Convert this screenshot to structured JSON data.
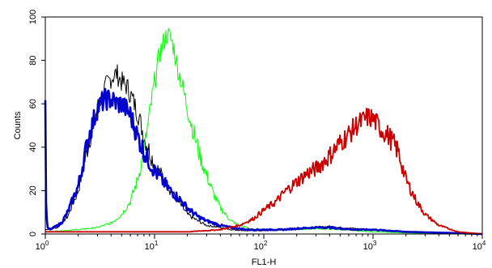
{
  "chart_data": {
    "type": "line",
    "title": "",
    "xlabel": "FL1-H",
    "ylabel": "Counts",
    "xscale": "log",
    "xlim": [
      1,
      10000
    ],
    "ylim": [
      0,
      100
    ],
    "grid": false,
    "legend": "none",
    "x_ticks": [
      {
        "base": "10",
        "exp": "0"
      },
      {
        "base": "10",
        "exp": "1"
      },
      {
        "base": "10",
        "exp": "2"
      },
      {
        "base": "10",
        "exp": "3"
      },
      {
        "base": "10",
        "exp": "4"
      }
    ],
    "y_ticks": [
      "0",
      "20",
      "40",
      "60",
      "80",
      "100"
    ],
    "series": [
      {
        "color": "#000000",
        "x": [
          1.0,
          1.3,
          1.6,
          2.0,
          2.5,
          3.0,
          3.5,
          4.0,
          4.5,
          5.0,
          5.6,
          6.3,
          7.1,
          8.0,
          9.0,
          10,
          12,
          14,
          17,
          20,
          25,
          30,
          40,
          50,
          70,
          100,
          150,
          200,
          300,
          400,
          500,
          700,
          1000,
          2000,
          5000,
          10000
        ],
        "y": [
          2,
          3,
          8,
          20,
          42,
          58,
          67,
          72,
          74,
          70,
          68,
          62,
          55,
          45,
          38,
          32,
          26,
          20,
          14,
          9,
          6,
          4,
          3,
          2,
          1.5,
          1.5,
          2,
          2.5,
          3,
          3.5,
          3,
          2.5,
          2,
          1,
          0.5,
          0
        ]
      },
      {
        "color": "#00ff00",
        "x": [
          1.0,
          2.0,
          3.0,
          4.0,
          5.0,
          6.0,
          7.0,
          8.0,
          9.0,
          10,
          11,
          12,
          13,
          14,
          15,
          16,
          18,
          20,
          23,
          26,
          30,
          35,
          40,
          50,
          60,
          80,
          100,
          200,
          300,
          500,
          1000,
          2000,
          5000,
          10000
        ],
        "y": [
          1,
          2,
          3,
          5,
          9,
          15,
          25,
          38,
          55,
          70,
          82,
          88,
          92,
          90,
          86,
          78,
          68,
          58,
          46,
          36,
          27,
          18,
          12,
          6,
          4,
          2,
          2,
          2,
          2.5,
          2,
          1,
          0.5,
          0,
          0
        ]
      },
      {
        "color": "#0000cc",
        "x": [
          1.0,
          1.02,
          1.05,
          1.1,
          1.2,
          1.4,
          1.6,
          2.0,
          2.5,
          3.0,
          3.5,
          4.0,
          4.5,
          5.0,
          6.0,
          7.0,
          8.0,
          9.0,
          10,
          12,
          14,
          17,
          20,
          25,
          30,
          40,
          50,
          70,
          100,
          150,
          200,
          300,
          400,
          500,
          700,
          1000,
          2000,
          5000,
          10000
        ],
        "y": [
          60,
          8,
          3,
          2,
          3,
          5,
          10,
          22,
          45,
          58,
          62,
          62,
          60,
          60,
          55,
          45,
          38,
          33,
          29,
          24,
          20,
          16,
          12,
          8,
          6,
          4,
          3,
          2,
          2,
          2,
          2.5,
          3,
          3,
          2.5,
          2,
          2,
          1,
          0.5,
          0
        ]
      },
      {
        "color": "#cc0000",
        "x": [
          1.0,
          2.0,
          5.0,
          10,
          20,
          40,
          60,
          80,
          100,
          130,
          160,
          200,
          250,
          300,
          400,
          500,
          600,
          700,
          800,
          900,
          1000,
          1200,
          1400,
          1700,
          2000,
          2500,
          3000,
          4000,
          6000,
          10000
        ],
        "y": [
          1,
          1,
          1,
          1,
          1,
          2,
          4,
          7,
          11,
          15,
          20,
          24,
          28,
          30,
          36,
          42,
          46,
          50,
          52,
          54,
          53,
          48,
          45,
          38,
          25,
          15,
          9,
          4,
          1,
          0
        ]
      }
    ]
  }
}
